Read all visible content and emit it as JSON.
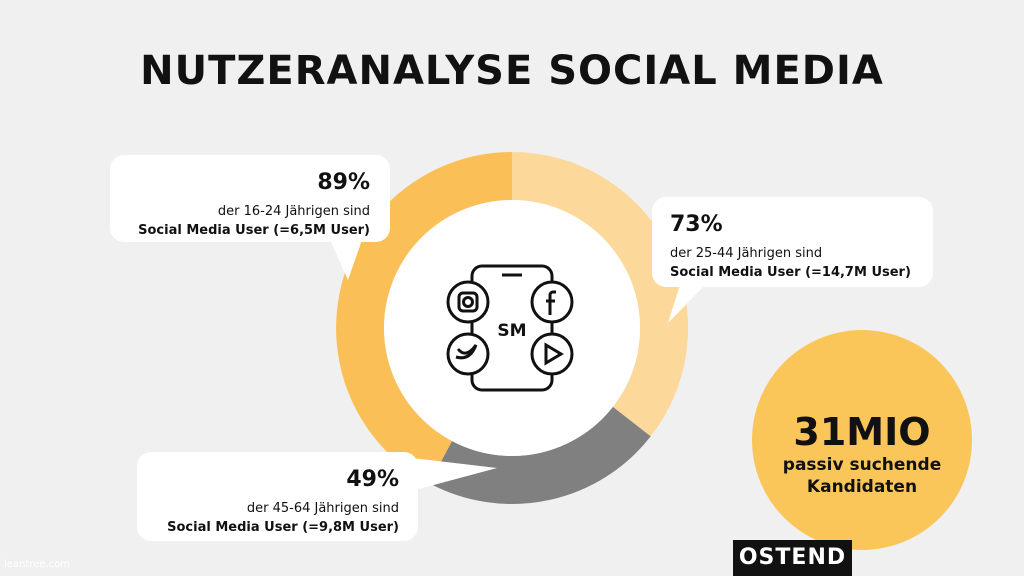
{
  "title": "NUTZERANALYSE SOCIAL MEDIA",
  "callouts": [
    {
      "value": "89%",
      "line1": "der 16-24 Jährigen sind",
      "line2": "Social Media User (=6,5M User)"
    },
    {
      "value": "73%",
      "line1": "der 25-44 Jährigen sind",
      "line2": "Social Media User (=14,7M User)"
    },
    {
      "value": "49%",
      "line1": "der 45-64 Jährigen sind",
      "line2": "Social Media User (=9,8M User)"
    }
  ],
  "icon": {
    "label": "SM"
  },
  "stat": {
    "value": "31MIO",
    "line1": "passiv suchende",
    "line2": "Kandidaten"
  },
  "brand": "OSTEND",
  "watermark": "leantree.com"
}
